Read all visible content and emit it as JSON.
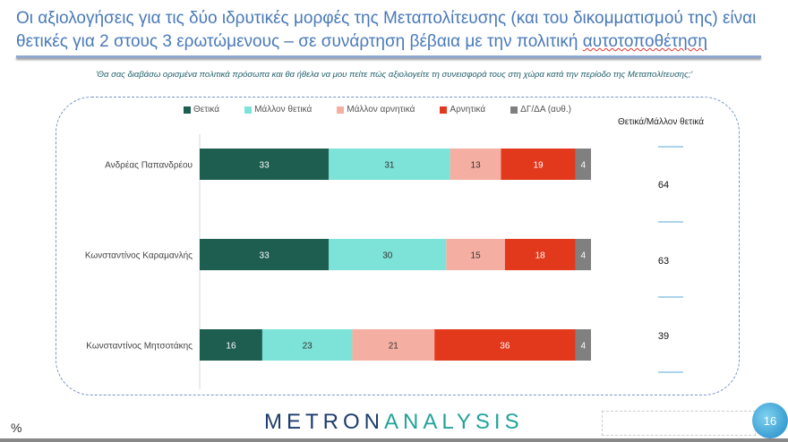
{
  "title_part1": "Οι αξιολογήσεις για τις δύο ιδρυτικές μορφές της Μεταπολίτευσης (και του δικομματισμού της) είναι θετικές για 2 στους 3 ερωτώμενους – σε συνάρτηση βέβαια με την πολιτική ",
  "title_part2": "αυτοτοποθέτηση",
  "question": "'Θα σας διαβάσω ορισμένα πολιτικά πρόσωπα και θα ήθελα να μου πείτε πώς αξιολογείτε τη συνεισφορά τους στη χώρα κατά την περίοδο της Μεταπολίτευσης;'",
  "chart_data": {
    "type": "bar",
    "orientation": "horizontal-stacked",
    "categories": [
      "Ανδρέας Παπανδρέου",
      "Κωνσταντίνος Καραμανλής",
      "Κωνσταντίνος Μητσοτάκης"
    ],
    "series": [
      {
        "name": "Θετικά",
        "color": "#1e5e50",
        "values": [
          33,
          33,
          16
        ]
      },
      {
        "name": "Μάλλον θετικά",
        "color": "#7de3d8",
        "values": [
          31,
          30,
          23
        ]
      },
      {
        "name": "Μάλλον αρνητικά",
        "color": "#f5afa2",
        "values": [
          13,
          15,
          21
        ]
      },
      {
        "name": "Αρνητικά",
        "color": "#e2391d",
        "values": [
          19,
          18,
          36
        ]
      },
      {
        "name": "ΔΓ/ΔΑ (αυθ.)",
        "color": "#808080",
        "values": [
          4,
          4,
          4
        ]
      }
    ],
    "summary_header": "Θετικά/Μάλλον θετικά",
    "summary_values": [
      "64",
      "63",
      "39"
    ],
    "unit": "%",
    "legend": "top"
  },
  "footer": {
    "unit": "%",
    "logo_a": "METRON",
    "logo_b": "ANALYSIS",
    "page": "16"
  }
}
